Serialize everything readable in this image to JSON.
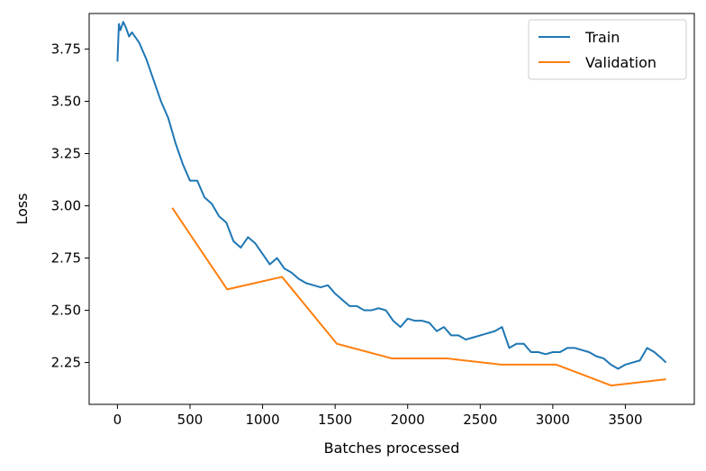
{
  "chart_data": {
    "type": "line",
    "xlabel": "Batches processed",
    "ylabel": "Loss",
    "xlim": [
      -195,
      3975
    ],
    "ylim": [
      2.05,
      3.92
    ],
    "xticks": [
      0,
      500,
      1000,
      1500,
      2000,
      2500,
      3000,
      3500
    ],
    "xtick_labels": [
      "0",
      "500",
      "1000",
      "1500",
      "2000",
      "2500",
      "3000",
      "3500"
    ],
    "yticks": [
      2.25,
      2.5,
      2.75,
      3.0,
      3.25,
      3.5,
      3.75
    ],
    "ytick_labels": [
      "2.25",
      "2.50",
      "2.75",
      "3.00",
      "3.25",
      "3.50",
      "3.75"
    ],
    "legend": "top-right",
    "grid": false,
    "series": [
      {
        "name": "Train",
        "color": "#1f77b4",
        "x": [
          0,
          10,
          20,
          40,
          60,
          80,
          100,
          150,
          200,
          250,
          300,
          350,
          400,
          450,
          500,
          550,
          600,
          650,
          700,
          750,
          800,
          850,
          900,
          950,
          1000,
          1050,
          1100,
          1150,
          1200,
          1250,
          1300,
          1350,
          1400,
          1450,
          1500,
          1550,
          1600,
          1650,
          1700,
          1750,
          1800,
          1850,
          1900,
          1950,
          2000,
          2050,
          2100,
          2150,
          2200,
          2250,
          2300,
          2350,
          2400,
          2450,
          2500,
          2550,
          2600,
          2650,
          2700,
          2750,
          2800,
          2850,
          2900,
          2950,
          3000,
          3050,
          3100,
          3150,
          3200,
          3250,
          3300,
          3350,
          3400,
          3450,
          3500,
          3550,
          3600,
          3650,
          3700,
          3750,
          3780
        ],
        "y": [
          3.69,
          3.87,
          3.84,
          3.88,
          3.85,
          3.81,
          3.83,
          3.78,
          3.7,
          3.6,
          3.5,
          3.42,
          3.3,
          3.2,
          3.12,
          3.12,
          3.04,
          3.01,
          2.95,
          2.92,
          2.83,
          2.8,
          2.85,
          2.82,
          2.77,
          2.72,
          2.75,
          2.7,
          2.68,
          2.65,
          2.63,
          2.62,
          2.61,
          2.62,
          2.58,
          2.55,
          2.52,
          2.52,
          2.5,
          2.5,
          2.51,
          2.5,
          2.45,
          2.42,
          2.46,
          2.45,
          2.45,
          2.44,
          2.4,
          2.42,
          2.38,
          2.38,
          2.36,
          2.37,
          2.38,
          2.39,
          2.4,
          2.42,
          2.32,
          2.34,
          2.34,
          2.3,
          2.3,
          2.29,
          2.3,
          2.3,
          2.32,
          2.32,
          2.31,
          2.3,
          2.28,
          2.27,
          2.24,
          2.22,
          2.24,
          2.25,
          2.26,
          2.32,
          2.3,
          2.27,
          2.25
        ]
      },
      {
        "name": "Validation",
        "color": "#ff7f0e",
        "x": [
          378,
          756,
          1134,
          1512,
          1890,
          2268,
          2646,
          3024,
          3402,
          3780
        ],
        "y": [
          2.99,
          2.6,
          2.66,
          2.34,
          2.27,
          2.27,
          2.24,
          2.24,
          2.14,
          2.17
        ]
      }
    ]
  }
}
